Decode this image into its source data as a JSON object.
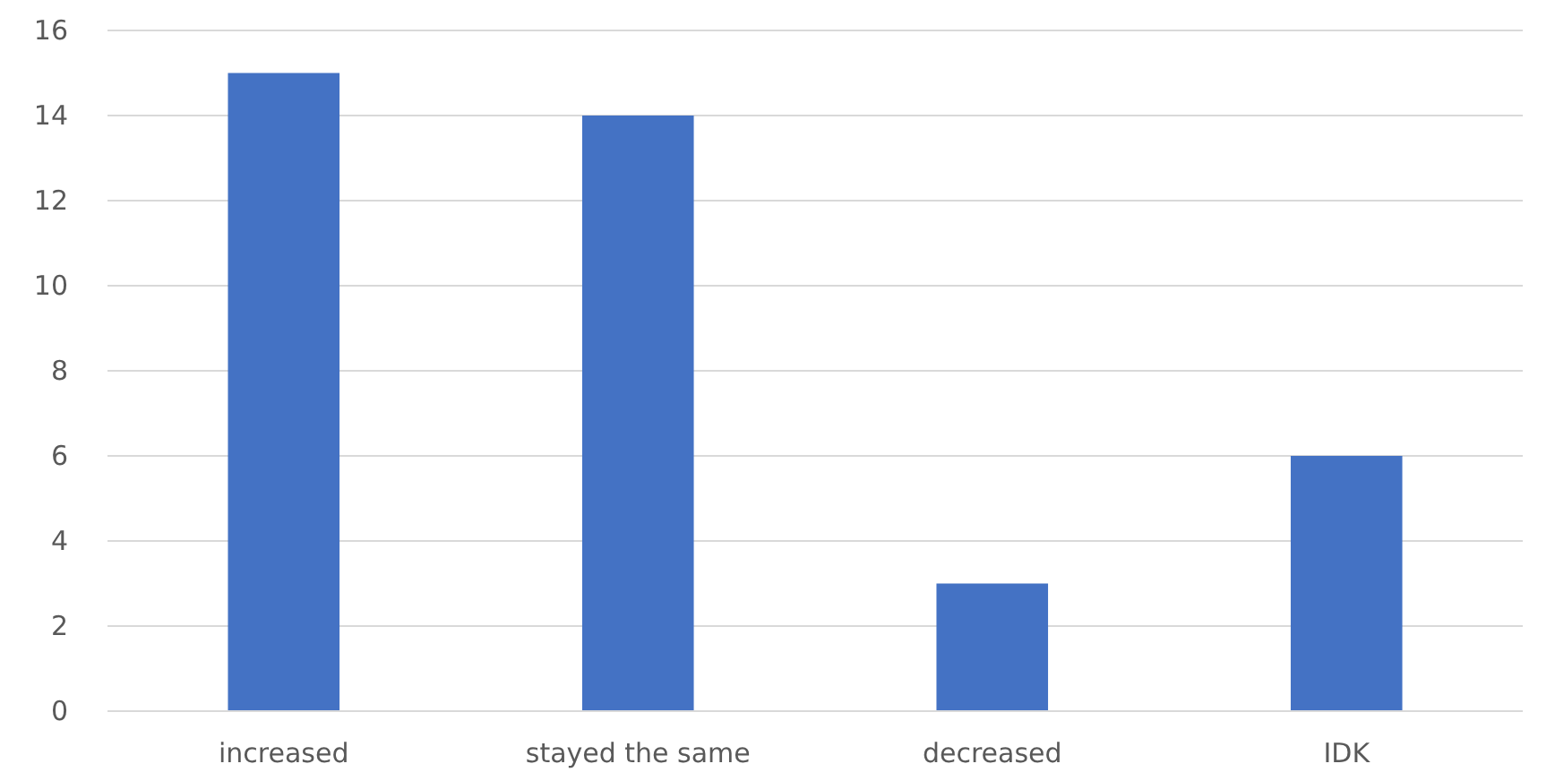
{
  "chart_data": {
    "type": "bar",
    "categories": [
      "increased",
      "stayed the same",
      "decreased",
      "IDK"
    ],
    "values": [
      15,
      14,
      3,
      6
    ],
    "color": "#4472c4",
    "ylim": [
      0,
      16
    ],
    "yticks": [
      0,
      2,
      4,
      6,
      8,
      10,
      12,
      14,
      16
    ],
    "grid": "y"
  }
}
